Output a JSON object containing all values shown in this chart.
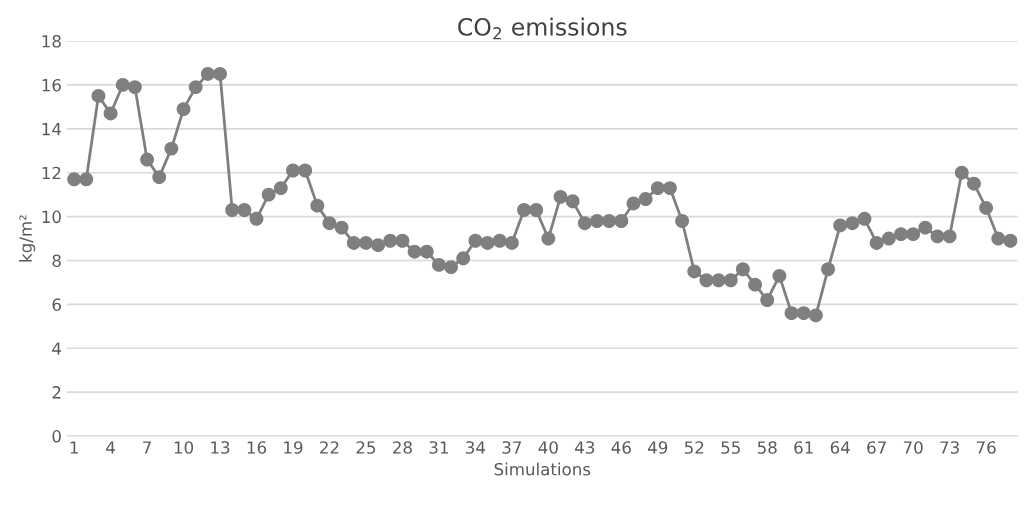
{
  "chart_data": {
    "type": "line",
    "title": "CO$_{2}$ emissions",
    "xlabel": "Simulations",
    "ylabel": "kg/m²",
    "categories": [
      "1",
      null,
      null,
      "4",
      null,
      null,
      "7",
      null,
      null,
      "10",
      null,
      null,
      "13",
      null,
      null,
      "16",
      null,
      null,
      "19",
      null,
      null,
      "22",
      null,
      null,
      "25",
      null,
      null,
      "28",
      null,
      null,
      "31",
      null,
      null,
      "34",
      null,
      null,
      "37",
      null,
      null,
      "40",
      null,
      null,
      "43",
      null,
      null,
      "46",
      null,
      null,
      "49",
      null,
      null,
      "52",
      null,
      null,
      "55",
      null,
      null,
      "58",
      null,
      null,
      "61",
      null,
      null,
      "64",
      null,
      null,
      "67",
      null,
      null,
      "70",
      null,
      null,
      "73",
      null,
      null,
      "76",
      null,
      null
    ],
    "series": [
      {
        "color": "#7f7f7f",
        "values": [
          11.7,
          11.7,
          15.5,
          14.7,
          16.0,
          15.9,
          12.6,
          11.8,
          13.1,
          14.9,
          15.9,
          16.5,
          16.5,
          10.3,
          10.3,
          9.9,
          11.0,
          11.3,
          12.1,
          12.1,
          10.5,
          9.7,
          9.5,
          8.8,
          8.8,
          8.7,
          8.9,
          8.9,
          8.4,
          8.4,
          7.8,
          7.7,
          8.1,
          8.9,
          8.8,
          8.9,
          8.8,
          10.3,
          10.3,
          9.0,
          10.9,
          10.7,
          9.7,
          9.8,
          9.8,
          9.8,
          10.6,
          10.8,
          11.3,
          11.3,
          9.8,
          7.5,
          7.1,
          7.1,
          7.1,
          7.6,
          6.9,
          6.2,
          7.3,
          5.6,
          5.6,
          5.5,
          7.6,
          9.6,
          9.7,
          9.9,
          8.8,
          9.0,
          9.2,
          9.2,
          9.5,
          9.1,
          9.1,
          12.0,
          11.5,
          10.4,
          9.0,
          8.9
        ]
      }
    ],
    "ylim": [
      0,
      18
    ],
    "yticks": [
      0,
      2,
      4,
      6,
      8,
      10,
      12,
      14,
      16,
      18
    ],
    "grid": "y",
    "marker": "circle",
    "line_style": "solid",
    "legend": false
  }
}
